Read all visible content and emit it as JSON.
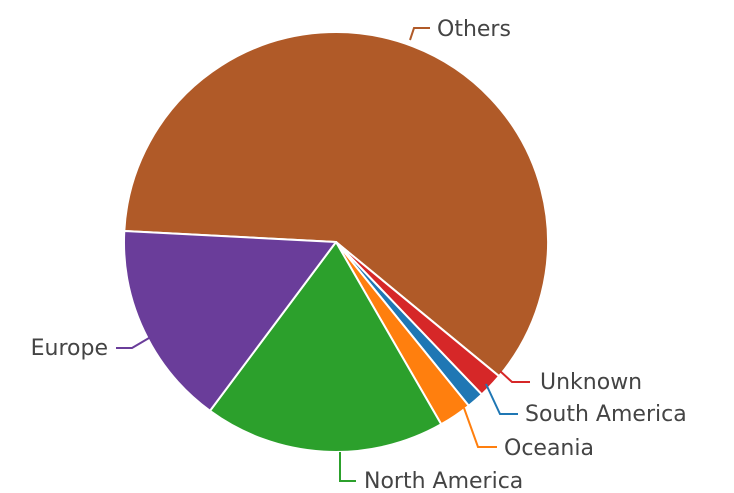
{
  "chart_data": {
    "type": "pie",
    "title": "",
    "slices": [
      {
        "label": "Others",
        "value": 60.2,
        "color": "#b05a28"
      },
      {
        "label": "Unknown",
        "value": 1.9,
        "color": "#d62728"
      },
      {
        "label": "South America",
        "value": 1.3,
        "color": "#1f77b4"
      },
      {
        "label": "Oceania",
        "value": 2.5,
        "color": "#ff7f0e"
      },
      {
        "label": "North America",
        "value": 18.4,
        "color": "#2ca02c"
      },
      {
        "label": "Europe",
        "value": 15.7,
        "color": "#6a3d9a"
      }
    ],
    "legend": "none",
    "labels_outside": true
  }
}
